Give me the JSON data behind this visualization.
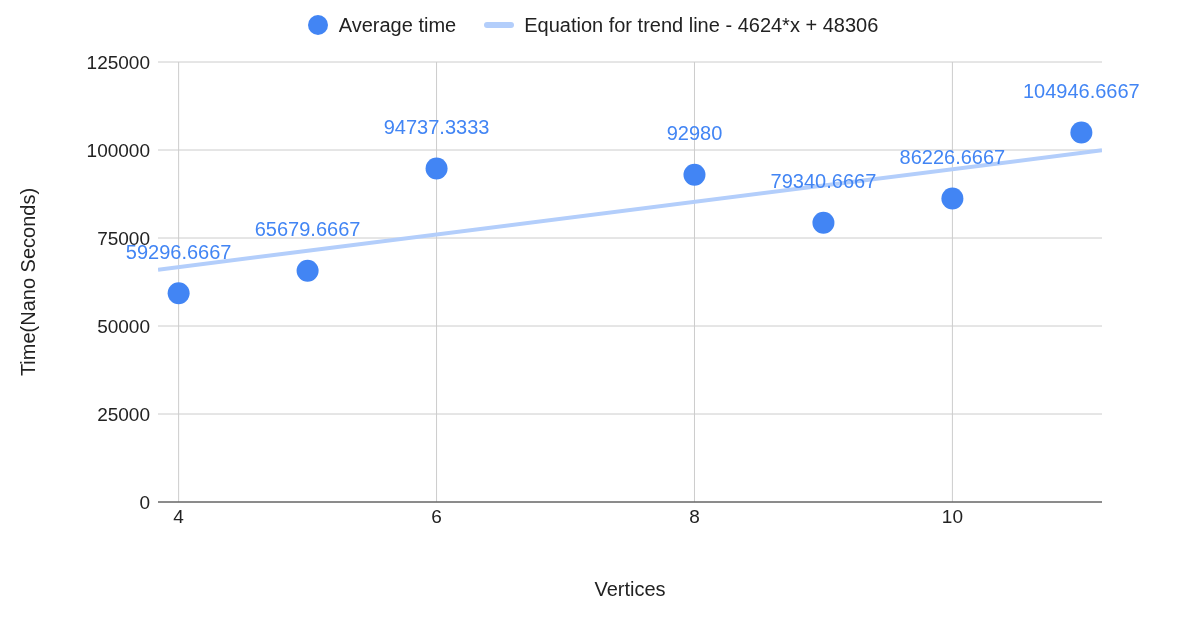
{
  "chart_data": {
    "type": "scatter",
    "xlabel": "Vertices",
    "ylabel": "Time(Nano Seconds)",
    "xlim": [
      3.84,
      11.16
    ],
    "xticks": [
      4,
      6,
      8,
      10
    ],
    "ylim": [
      0,
      125000
    ],
    "yticks": [
      0,
      25000,
      50000,
      75000,
      100000,
      125000
    ],
    "grid": true,
    "legend": "top",
    "marker": "circle",
    "series": [
      {
        "name": "Average time",
        "color": "#4285f4",
        "x": [
          4,
          5,
          6,
          8,
          9,
          10,
          11
        ],
        "values": [
          59296.6667,
          65679.6667,
          94737.3333,
          92980,
          79340.6667,
          86226.6667,
          104946.6667
        ],
        "value_labels": [
          "59296.6667",
          "65679.6667",
          "94737.3333",
          "92980",
          "79340.6667",
          "86226.6667",
          "104946.6667"
        ]
      },
      {
        "name": "Equation for trend line - 4624*x + 48306",
        "type": "line",
        "marker": "none",
        "color": "#b3cefb",
        "x": [
          3.84,
          11.16
        ],
        "values": [
          66000,
          99900
        ]
      }
    ]
  }
}
